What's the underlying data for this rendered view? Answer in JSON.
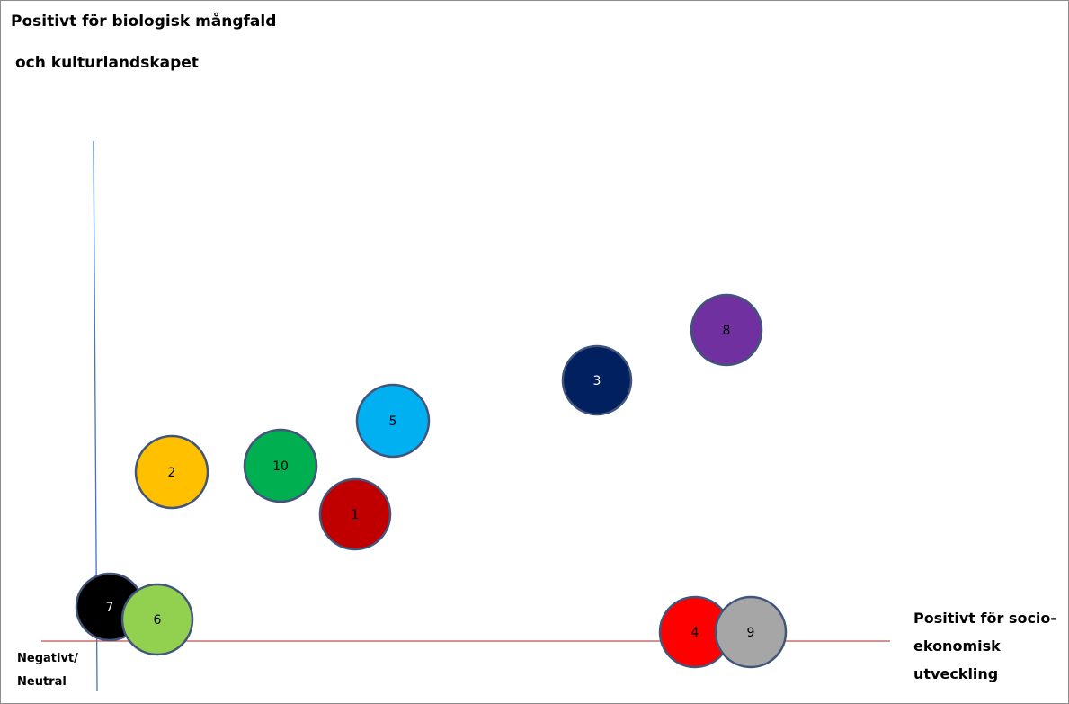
{
  "labels": {
    "y_line1": "Positivt för biologisk mångfald",
    "y_line2": "och kulturlandskapet",
    "x_line1": "Positivt för socio-",
    "x_line2": "ekonomisk",
    "x_line3": "utveckling",
    "origin_line1": "Negativt/",
    "origin_line2": "Neutral"
  },
  "colors": {
    "y_axis": "#4472c4",
    "x_axis": "#c0504d",
    "bubble_outline": "#41557a"
  },
  "bubbles": [
    {
      "id": "7",
      "fill": "#000000",
      "text_color": "#ffffff"
    },
    {
      "id": "6",
      "fill": "#92d050",
      "text_color": "#000000"
    },
    {
      "id": "2",
      "fill": "#ffc000",
      "text_color": "#000000"
    },
    {
      "id": "10",
      "fill": "#00b050",
      "text_color": "#000000"
    },
    {
      "id": "1",
      "fill": "#c00000",
      "text_color": "#000000"
    },
    {
      "id": "5",
      "fill": "#00b0f0",
      "text_color": "#000000"
    },
    {
      "id": "3",
      "fill": "#002060",
      "text_color": "#ffffff"
    },
    {
      "id": "8",
      "fill": "#7030a0",
      "text_color": "#000000"
    },
    {
      "id": "4",
      "fill": "#ff0000",
      "text_color": "#000000"
    },
    {
      "id": "9",
      "fill": "#a6a6a6",
      "text_color": "#000000"
    }
  ]
}
